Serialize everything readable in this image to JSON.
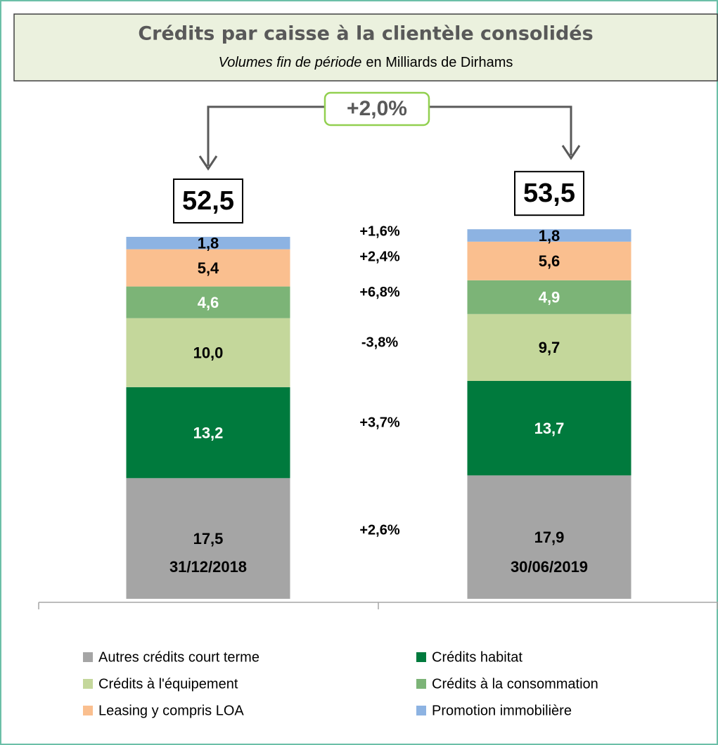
{
  "chart_data": {
    "type": "stacked_bar",
    "title": "Crédits par caisse à la clientèle consolidés",
    "subtitle_italic": "Volumes fin de période",
    "subtitle_rest": "en Milliards de Dirhams",
    "categories": [
      "31/12/2018",
      "30/06/2019"
    ],
    "series": [
      {
        "name": "Autres crédits court terme",
        "color": "#a5a5a5",
        "label_color": "#000000",
        "values": [
          17.5,
          17.9
        ],
        "value_labels": [
          "17,5",
          "17,9"
        ],
        "growth": 2.6,
        "growth_label": "+2,6%"
      },
      {
        "name": "Crédits habitat",
        "color": "#007a3d",
        "label_color": "#ffffff",
        "values": [
          13.2,
          13.7
        ],
        "value_labels": [
          "13,2",
          "13,7"
        ],
        "growth": 3.7,
        "growth_label": "+3,7%"
      },
      {
        "name": "Crédits à l'équipement",
        "color": "#c4d79b",
        "label_color": "#000000",
        "values": [
          10.0,
          9.7
        ],
        "value_labels": [
          "10,0",
          "9,7"
        ],
        "growth": -3.8,
        "growth_label": "-3,8%"
      },
      {
        "name": "Crédits à la consommation",
        "color": "#7cb477",
        "label_color": "#ffffff",
        "values": [
          4.6,
          4.9
        ],
        "value_labels": [
          "4,6",
          "4,9"
        ],
        "growth": 6.8,
        "growth_label": "+6,8%"
      },
      {
        "name": "Leasing y compris LOA",
        "color": "#fabf8f",
        "label_color": "#000000",
        "values": [
          5.4,
          5.6
        ],
        "value_labels": [
          "5,4",
          "5,6"
        ],
        "growth": 2.4,
        "growth_label": "+2,4%"
      },
      {
        "name": "Promotion immobilière",
        "color": "#8db3e2",
        "label_color": "#000000",
        "values": [
          1.8,
          1.8
        ],
        "value_labels": [
          "1,8",
          "1,8"
        ],
        "growth": 1.6,
        "growth_label": "+1,6%"
      }
    ],
    "totals": {
      "values": [
        52.5,
        53.5
      ],
      "value_labels": [
        "52,5",
        "53,5"
      ]
    },
    "total_growth": 2.0,
    "total_growth_label": "+2,0%"
  }
}
